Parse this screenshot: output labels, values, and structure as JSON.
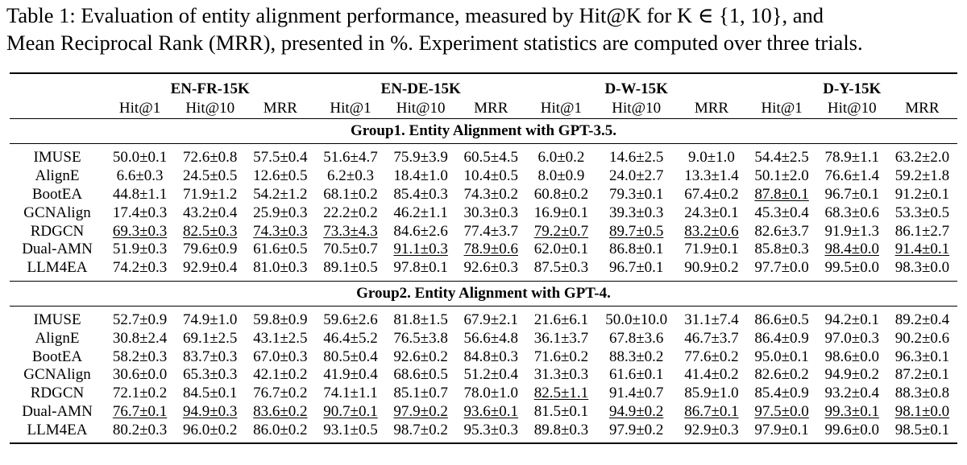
{
  "caption": {
    "line1": "Table 1: Evaluation of entity alignment performance, measured by Hit@K for K ∈ {1, 10}, and",
    "line2": "Mean Reciprocal Rank (MRR), presented in %. Experiment statistics are computed over three trials."
  },
  "datasets": [
    "EN-FR-15K",
    "EN-DE-15K",
    "D-W-15K",
    "D-Y-15K"
  ],
  "metrics": [
    "Hit@1",
    "Hit@10",
    "MRR"
  ],
  "groups": [
    {
      "label": "Group1. Entity Alignment with GPT-3.5.",
      "rows": [
        {
          "method": "IMUSE",
          "cells": [
            {
              "v": "50.0±0.1"
            },
            {
              "v": "72.6±0.8"
            },
            {
              "v": "57.5±0.4"
            },
            {
              "v": "51.6±4.7"
            },
            {
              "v": "75.9±3.9"
            },
            {
              "v": "60.5±4.5"
            },
            {
              "v": "6.0±0.2"
            },
            {
              "v": "14.6±2.5"
            },
            {
              "v": "9.0±1.0"
            },
            {
              "v": "54.4±2.5"
            },
            {
              "v": "78.9±1.1"
            },
            {
              "v": "63.2±2.0"
            }
          ]
        },
        {
          "method": "AlignE",
          "cells": [
            {
              "v": "6.6±0.3"
            },
            {
              "v": "24.5±0.5"
            },
            {
              "v": "12.6±0.5"
            },
            {
              "v": "6.2±0.3"
            },
            {
              "v": "18.4±1.0"
            },
            {
              "v": "10.4±0.5"
            },
            {
              "v": "8.0±0.9"
            },
            {
              "v": "24.0±2.7"
            },
            {
              "v": "13.3±1.4"
            },
            {
              "v": "50.1±2.0"
            },
            {
              "v": "76.6±1.4"
            },
            {
              "v": "59.2±1.8"
            }
          ]
        },
        {
          "method": "BootEA",
          "cells": [
            {
              "v": "44.8±1.1"
            },
            {
              "v": "71.9±1.2"
            },
            {
              "v": "54.2±1.2"
            },
            {
              "v": "68.1±0.2"
            },
            {
              "v": "85.4±0.3"
            },
            {
              "v": "74.3±0.2"
            },
            {
              "v": "60.8±0.2"
            },
            {
              "v": "79.3±0.1"
            },
            {
              "v": "67.4±0.2"
            },
            {
              "v": "87.8±0.1",
              "u": true
            },
            {
              "v": "96.7±0.1"
            },
            {
              "v": "91.2±0.1"
            }
          ]
        },
        {
          "method": "GCNAlign",
          "cells": [
            {
              "v": "17.4±0.3"
            },
            {
              "v": "43.2±0.4"
            },
            {
              "v": "25.9±0.3"
            },
            {
              "v": "22.2±0.2"
            },
            {
              "v": "46.2±1.1"
            },
            {
              "v": "30.3±0.3"
            },
            {
              "v": "16.9±0.1"
            },
            {
              "v": "39.3±0.3"
            },
            {
              "v": "24.3±0.1"
            },
            {
              "v": "45.3±0.4"
            },
            {
              "v": "68.3±0.6"
            },
            {
              "v": "53.3±0.5"
            }
          ]
        },
        {
          "method": "RDGCN",
          "cells": [
            {
              "v": "69.3±0.3",
              "u": true
            },
            {
              "v": "82.5±0.3",
              "u": true
            },
            {
              "v": "74.3±0.3",
              "u": true
            },
            {
              "v": "73.3±4.3",
              "u": true
            },
            {
              "v": "84.6±2.6"
            },
            {
              "v": "77.4±3.7"
            },
            {
              "v": "79.2±0.7",
              "u": true
            },
            {
              "v": "89.7±0.5",
              "u": true
            },
            {
              "v": "83.2±0.6",
              "u": true
            },
            {
              "v": "82.6±3.7"
            },
            {
              "v": "91.9±1.3"
            },
            {
              "v": "86.1±2.7"
            }
          ]
        },
        {
          "method": "Dual-AMN",
          "cells": [
            {
              "v": "51.9±0.3"
            },
            {
              "v": "79.6±0.9"
            },
            {
              "v": "61.6±0.5"
            },
            {
              "v": "70.5±0.7"
            },
            {
              "v": "91.1±0.3",
              "u": true
            },
            {
              "v": "78.9±0.6",
              "u": true
            },
            {
              "v": "62.0±0.1"
            },
            {
              "v": "86.8±0.1"
            },
            {
              "v": "71.9±0.1"
            },
            {
              "v": "85.8±0.3"
            },
            {
              "v": "98.4±0.0",
              "u": true
            },
            {
              "v": "91.4±0.1",
              "u": true
            }
          ]
        },
        {
          "method": "LLM4EA",
          "bold": true,
          "cells": [
            {
              "v": "74.2±0.3"
            },
            {
              "v": "92.9±0.4"
            },
            {
              "v": "81.0±0.3"
            },
            {
              "v": "89.1±0.5"
            },
            {
              "v": "97.8±0.1"
            },
            {
              "v": "92.6±0.3"
            },
            {
              "v": "87.5±0.3"
            },
            {
              "v": "96.7±0.1"
            },
            {
              "v": "90.9±0.2"
            },
            {
              "v": "97.7±0.0"
            },
            {
              "v": "99.5±0.0"
            },
            {
              "v": "98.3±0.0"
            }
          ]
        }
      ]
    },
    {
      "label": "Group2. Entity Alignment with GPT-4.",
      "rows": [
        {
          "method": "IMUSE",
          "cells": [
            {
              "v": "52.7±0.9"
            },
            {
              "v": "74.9±1.0"
            },
            {
              "v": "59.8±0.9"
            },
            {
              "v": "59.6±2.6"
            },
            {
              "v": "81.8±1.5"
            },
            {
              "v": "67.9±2.1"
            },
            {
              "v": "21.6±6.1"
            },
            {
              "v": "50.0±10.0"
            },
            {
              "v": "31.1±7.4"
            },
            {
              "v": "86.6±0.5"
            },
            {
              "v": "94.2±0.1"
            },
            {
              "v": "89.2±0.4"
            }
          ]
        },
        {
          "method": "AlignE",
          "cells": [
            {
              "v": "30.8±2.4"
            },
            {
              "v": "69.1±2.5"
            },
            {
              "v": "43.1±2.5"
            },
            {
              "v": "46.4±5.2"
            },
            {
              "v": "76.5±3.8"
            },
            {
              "v": "56.6±4.8"
            },
            {
              "v": "36.1±3.7"
            },
            {
              "v": "67.8±3.6"
            },
            {
              "v": "46.7±3.7"
            },
            {
              "v": "86.4±0.9"
            },
            {
              "v": "97.0±0.3"
            },
            {
              "v": "90.2±0.6"
            }
          ]
        },
        {
          "method": "BootEA",
          "cells": [
            {
              "v": "58.2±0.3"
            },
            {
              "v": "83.7±0.3"
            },
            {
              "v": "67.0±0.3"
            },
            {
              "v": "80.5±0.4"
            },
            {
              "v": "92.6±0.2"
            },
            {
              "v": "84.8±0.3"
            },
            {
              "v": "71.6±0.2"
            },
            {
              "v": "88.3±0.2"
            },
            {
              "v": "77.6±0.2"
            },
            {
              "v": "95.0±0.1"
            },
            {
              "v": "98.6±0.0"
            },
            {
              "v": "96.3±0.1"
            }
          ]
        },
        {
          "method": "GCNAlign",
          "cells": [
            {
              "v": "30.6±0.0"
            },
            {
              "v": "65.3±0.3"
            },
            {
              "v": "42.1±0.2"
            },
            {
              "v": "41.9±0.4"
            },
            {
              "v": "68.6±0.5"
            },
            {
              "v": "51.2±0.4"
            },
            {
              "v": "31.3±0.3"
            },
            {
              "v": "61.6±0.1"
            },
            {
              "v": "41.4±0.2"
            },
            {
              "v": "82.6±0.2"
            },
            {
              "v": "94.9±0.2"
            },
            {
              "v": "87.2±0.1"
            }
          ]
        },
        {
          "method": "RDGCN",
          "cells": [
            {
              "v": "72.1±0.2"
            },
            {
              "v": "84.5±0.1"
            },
            {
              "v": "76.7±0.2"
            },
            {
              "v": "74.1±1.1"
            },
            {
              "v": "85.1±0.7"
            },
            {
              "v": "78.0±1.0"
            },
            {
              "v": "82.5±1.1",
              "u": true
            },
            {
              "v": "91.4±0.7"
            },
            {
              "v": "85.9±1.0"
            },
            {
              "v": "85.4±0.9"
            },
            {
              "v": "93.2±0.4"
            },
            {
              "v": "88.3±0.8"
            }
          ]
        },
        {
          "method": "Dual-AMN",
          "cells": [
            {
              "v": "76.7±0.1",
              "u": true
            },
            {
              "v": "94.9±0.3",
              "u": true
            },
            {
              "v": "83.6±0.2",
              "u": true
            },
            {
              "v": "90.7±0.1",
              "u": true
            },
            {
              "v": "97.9±0.2",
              "u": true
            },
            {
              "v": "93.6±0.1",
              "u": true
            },
            {
              "v": "81.5±0.1"
            },
            {
              "v": "94.9±0.2",
              "u": true
            },
            {
              "v": "86.7±0.1",
              "u": true
            },
            {
              "v": "97.5±0.0",
              "u": true
            },
            {
              "v": "99.3±0.1",
              "u": true
            },
            {
              "v": "98.1±0.0",
              "u": true
            }
          ]
        },
        {
          "method": "LLM4EA",
          "bold": true,
          "cells": [
            {
              "v": "80.2±0.3"
            },
            {
              "v": "96.0±0.2"
            },
            {
              "v": "86.0±0.2"
            },
            {
              "v": "93.1±0.5"
            },
            {
              "v": "98.7±0.2"
            },
            {
              "v": "95.3±0.3"
            },
            {
              "v": "89.8±0.3"
            },
            {
              "v": "97.9±0.2"
            },
            {
              "v": "92.9±0.3"
            },
            {
              "v": "97.9±0.1"
            },
            {
              "v": "99.6±0.0"
            },
            {
              "v": "98.5±0.1"
            }
          ]
        }
      ]
    }
  ]
}
